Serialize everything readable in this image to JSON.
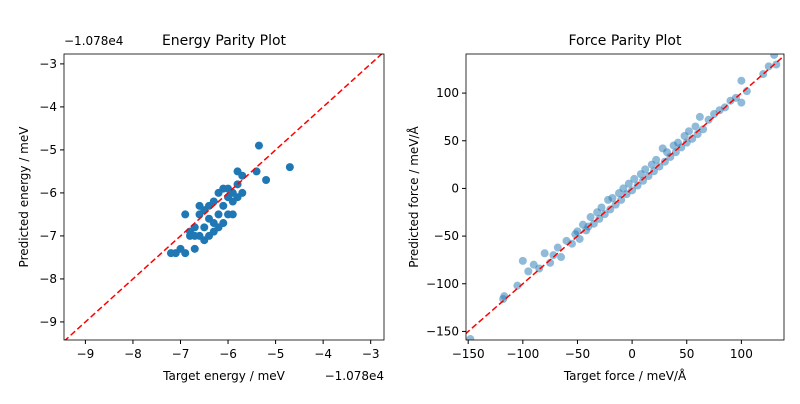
{
  "chart_data": [
    {
      "type": "scatter",
      "title": "Energy Parity Plot",
      "xlabel": "Target energy / meV",
      "ylabel": "Predicted energy / meV",
      "x_offset_label": "−1.078e4",
      "y_offset_label": "−1.078e4",
      "color": "#1f77b4",
      "opacity": 1,
      "identity_line_color": "#ff0000",
      "xlim": [
        -9.45,
        -2.72
      ],
      "ylim": [
        -9.42,
        -2.77
      ],
      "xticks": [
        {
          "value": -9,
          "label": "−9"
        },
        {
          "value": -8,
          "label": "−8"
        },
        {
          "value": -7,
          "label": "−7"
        },
        {
          "value": -6,
          "label": "−6"
        },
        {
          "value": -5,
          "label": "−5"
        },
        {
          "value": -4,
          "label": "−4"
        },
        {
          "value": -3,
          "label": "−3"
        }
      ],
      "yticks": [
        {
          "value": -9,
          "label": "−9"
        },
        {
          "value": -8,
          "label": "−8"
        },
        {
          "value": -7,
          "label": "−7"
        },
        {
          "value": -6,
          "label": "−6"
        },
        {
          "value": -5,
          "label": "−5"
        },
        {
          "value": -4,
          "label": "−4"
        },
        {
          "value": -3,
          "label": "−3"
        }
      ],
      "x": [
        -7.1,
        -7.0,
        -6.9,
        -6.9,
        -6.8,
        -6.8,
        -6.7,
        -6.7,
        -6.6,
        -6.6,
        -6.5,
        -6.5,
        -6.5,
        -6.4,
        -6.4,
        -6.4,
        -6.3,
        -6.3,
        -6.3,
        -6.2,
        -6.2,
        -6.2,
        -6.1,
        -6.1,
        -6.1,
        -6.0,
        -6.0,
        -6.0,
        -5.9,
        -5.9,
        -5.8,
        -5.8,
        -5.8,
        -5.7,
        -5.7,
        -5.4,
        -5.35,
        -5.2,
        -4.7,
        -5.9,
        -6.6,
        -6.7,
        -7.2
      ],
      "values": [
        -7.4,
        -7.3,
        -7.4,
        -6.5,
        -7.0,
        -6.9,
        -7.3,
        -6.8,
        -6.5,
        -7.0,
        -6.4,
        -6.8,
        -7.1,
        -6.6,
        -6.3,
        -7.0,
        -6.7,
        -6.2,
        -6.9,
        -6.5,
        -6.0,
        -6.8,
        -5.9,
        -6.3,
        -6.7,
        -6.1,
        -5.9,
        -6.5,
        -6.2,
        -6.0,
        -5.5,
        -5.8,
        -6.1,
        -5.6,
        -6.0,
        -5.5,
        -4.9,
        -5.7,
        -5.4,
        -6.5,
        -6.3,
        -7.0,
        -7.4
      ]
    },
    {
      "type": "scatter",
      "title": "Force Parity Plot",
      "xlabel": "Target force / meV/Å",
      "ylabel": "Predicted force / meV/Å",
      "color": "#1f77b4",
      "opacity": 0.5,
      "identity_line_color": "#ff0000",
      "xlim": [
        -152,
        139
      ],
      "ylim": [
        -159,
        141
      ],
      "xticks": [
        {
          "value": -150,
          "label": "−150"
        },
        {
          "value": -100,
          "label": "−100"
        },
        {
          "value": -50,
          "label": "−50"
        },
        0,
        50,
        100
      ],
      "yticks": [
        {
          "value": -150,
          "label": "−150"
        },
        {
          "value": -100,
          "label": "−100"
        },
        {
          "value": -50,
          "label": "−50"
        },
        0,
        50,
        100
      ],
      "x": [
        -148,
        -118,
        -117,
        -105,
        -100,
        -95,
        -90,
        -85,
        -80,
        -75,
        -72,
        -68,
        -65,
        -60,
        -55,
        -52,
        -50,
        -48,
        -45,
        -42,
        -40,
        -38,
        -35,
        -32,
        -30,
        -28,
        -25,
        -22,
        -20,
        -18,
        -15,
        -12,
        -10,
        -8,
        -5,
        -3,
        0,
        2,
        5,
        8,
        10,
        12,
        15,
        18,
        20,
        22,
        25,
        28,
        30,
        32,
        35,
        38,
        40,
        42,
        45,
        48,
        50,
        52,
        55,
        58,
        60,
        62,
        65,
        70,
        75,
        80,
        85,
        90,
        95,
        100,
        100,
        105,
        120,
        125,
        130,
        132
      ],
      "values": [
        -158,
        -116,
        -113,
        -102,
        -76,
        -87,
        -80,
        -84,
        -68,
        -78,
        -70,
        -62,
        -72,
        -55,
        -58,
        -48,
        -45,
        -53,
        -38,
        -44,
        -40,
        -30,
        -37,
        -25,
        -32,
        -20,
        -27,
        -12,
        -22,
        -10,
        -17,
        -5,
        -12,
        0,
        -6,
        5,
        -2,
        10,
        3,
        15,
        8,
        20,
        13,
        25,
        18,
        30,
        23,
        42,
        28,
        38,
        33,
        45,
        38,
        48,
        43,
        55,
        48,
        60,
        52,
        65,
        57,
        75,
        62,
        72,
        78,
        82,
        85,
        92,
        95,
        113,
        90,
        102,
        120,
        128,
        140,
        130
      ]
    }
  ]
}
